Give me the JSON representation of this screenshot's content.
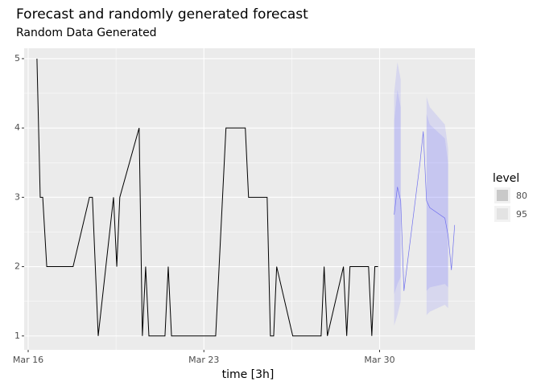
{
  "chart_data": {
    "type": "line",
    "title": "Forecast and randomly generated forecast",
    "subtitle": "Random Data Generated",
    "x_label": "time [3h]",
    "xlim": [
      -0.16,
      17.8
    ],
    "xticks": [
      {
        "value": 0,
        "label": "Mar 16"
      },
      {
        "value": 7,
        "label": "Mar 23"
      },
      {
        "value": 14,
        "label": "Mar 30"
      }
    ],
    "ylim": [
      0.8,
      5.15
    ],
    "yticks": [
      1,
      2,
      3,
      4,
      5
    ],
    "grid": true,
    "series": [
      {
        "color": "#000000",
        "x": [
          0.35,
          0.48,
          0.58,
          0.74,
          1.79,
          2.44,
          2.56,
          2.79,
          3.4,
          3.53,
          3.65,
          4.42,
          4.55,
          4.68,
          4.81,
          5.45,
          5.58,
          5.71,
          7.47,
          7.88,
          8.65,
          8.78,
          9.52,
          9.65,
          9.78,
          9.9,
          10.54,
          11.67,
          11.79,
          11.92,
          12.56,
          12.69,
          12.82,
          13.56,
          13.69,
          13.81,
          13.94
        ],
        "values": [
          5,
          3,
          3,
          2,
          2,
          3,
          3,
          1,
          3,
          2,
          3,
          4,
          1,
          2,
          1,
          1,
          2,
          1,
          1,
          4,
          4,
          3,
          3,
          1,
          1,
          2,
          1,
          1,
          2,
          1,
          2,
          1,
          2,
          2,
          1,
          2,
          2
        ]
      },
      {
        "color": "#7070ee",
        "x": [
          14.58,
          14.71,
          14.84,
          14.97,
          15.61,
          15.74,
          15.87,
          16.0,
          16.6,
          16.73,
          16.86,
          16.99
        ],
        "values": [
          2.75,
          3.15,
          2.95,
          1.65,
          3.5,
          3.95,
          2.95,
          2.85,
          2.7,
          2.45,
          1.95,
          2.6
        ]
      }
    ],
    "legend_title": "level",
    "intervals": [
      {
        "name": "80",
        "color": "#6464ff",
        "legend_color": "#c9c9c9",
        "upper": [
          4.1,
          4.55,
          4.3,
          null,
          null,
          null,
          4.2,
          4.05,
          3.85,
          3.5,
          null,
          null
        ],
        "lower": [
          1.6,
          1.75,
          1.85,
          null,
          null,
          null,
          1.65,
          1.7,
          1.75,
          1.7,
          null,
          null
        ]
      },
      {
        "name": "95",
        "color": "#6464ff",
        "legend_color": "#e3e3e3",
        "upper": [
          4.5,
          4.95,
          4.7,
          null,
          null,
          null,
          4.45,
          4.3,
          4.05,
          3.7,
          null,
          null
        ],
        "lower": [
          1.15,
          1.3,
          1.5,
          null,
          null,
          null,
          1.3,
          1.35,
          1.45,
          1.4,
          null,
          null
        ]
      }
    ]
  }
}
